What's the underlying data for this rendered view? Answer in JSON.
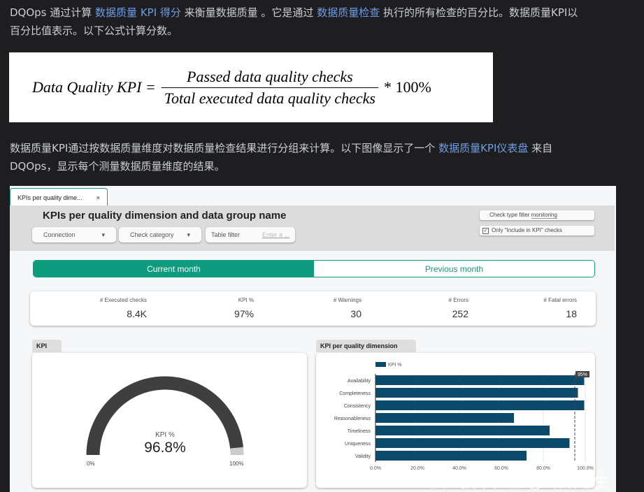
{
  "intro": {
    "t1": "DQOps 通过计算 ",
    "l1": "数据质量 KPI 得分",
    "t2": " 来衡量数据质量 。它是通过 ",
    "l2": "数据质量检查",
    "t3": " 执行的所有检查的百分比。数据质量KPI以",
    "t4": "百分比值表示。以下公式计算分数。"
  },
  "formula": {
    "lhs": "Data Quality KPI =",
    "num": "Passed data quality checks",
    "den": "Total executed data quality checks",
    "rhs": "* 100%"
  },
  "para2": {
    "t1": "数据质量KPI通过按数据质量维度对数据质量检查结果进行分组来计算。以下图像显示了一个 ",
    "l1": "数据质量KPI仪表盘",
    "t2": " 来自",
    "t3": "DQOps，显示每个测量数据质量维度的结果。"
  },
  "dash": {
    "tab_label": "KPIs per quality dime...",
    "tab_close": "×",
    "title": "KPIs per quality dimension and data group name",
    "filters": {
      "connection": "Connection",
      "check_category": "Check category",
      "table_filter": "Table filter",
      "table_placeholder": "Enter a ...",
      "check_type_label": "Check type filter",
      "check_type_value": "monitoring",
      "include_kpi": "Only \"Include in KPI\" checks"
    },
    "period": {
      "current": "Current month",
      "previous": "Previous month",
      "selected": "current"
    },
    "stats": [
      {
        "label": "# Executed checks",
        "value": "8.4K"
      },
      {
        "label": "KPI %",
        "value": "97%"
      },
      {
        "label": "# Warnings",
        "value": "30"
      },
      {
        "label": "# Errors",
        "value": "252"
      },
      {
        "label": "# Fatal errors",
        "value": "18"
      }
    ],
    "kpi_card": {
      "title": "KPI",
      "label": "KPI %",
      "value": "96.8%",
      "min": "0%",
      "max": "100%",
      "fraction": 0.968
    }
  },
  "chart_data": {
    "type": "bar",
    "orientation": "horizontal",
    "title": "KPI per quality dimension",
    "categories": [
      "Availability",
      "Completeness",
      "Consistency",
      "Reasonableness",
      "Timeliness",
      "Uniqueness",
      "Validity"
    ],
    "series": [
      {
        "name": "KPI %",
        "values": [
          99.5,
          96.5,
          99.5,
          66,
          83,
          92.5,
          72
        ]
      }
    ],
    "xlim": [
      0,
      100
    ],
    "x_ticks": [
      "0.0%",
      "20.0%",
      "40.0%",
      "60.0%",
      "80.0%",
      "100.0%"
    ],
    "threshold": {
      "value": 95,
      "label": "95%"
    },
    "legend": "top-left",
    "bar_color": "#0b4a6b"
  },
  "watermark": "掘金技术社区 @ 语落心生"
}
